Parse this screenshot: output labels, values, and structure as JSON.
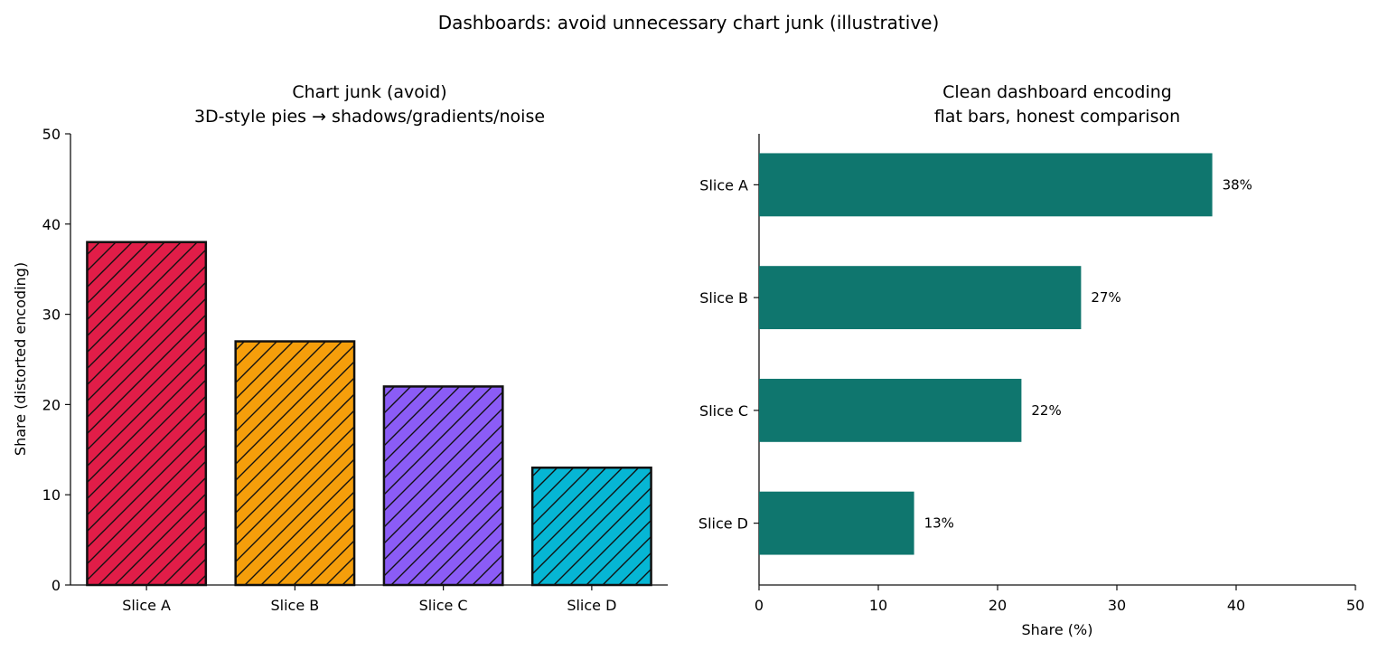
{
  "figure": {
    "suptitle": "Dashboards: avoid unnecessary chart junk (illustrative)"
  },
  "chart_data": [
    {
      "type": "bar",
      "title_line1": "Chart junk (avoid)",
      "title_line2": "3D-style pies → shadows/gradients/noise",
      "xlabel": "",
      "ylabel": "Share (distorted encoding)",
      "categories": [
        "Slice A",
        "Slice B",
        "Slice C",
        "Slice D"
      ],
      "values": [
        38,
        27,
        22,
        13
      ],
      "colors": [
        "#e11d48",
        "#f59e0b",
        "#8b5cf6",
        "#06b6d4"
      ],
      "hatch": "diagonal",
      "ylim": [
        0,
        50
      ],
      "yticks": [
        "0",
        "10",
        "20",
        "30",
        "40",
        "50"
      ],
      "grid": false
    },
    {
      "type": "bar",
      "orientation": "horizontal",
      "title_line1": "Clean dashboard encoding",
      "title_line2": "flat bars, honest comparison",
      "xlabel": "Share (%)",
      "ylabel": "",
      "categories": [
        "Slice A",
        "Slice B",
        "Slice C",
        "Slice D"
      ],
      "values": [
        38,
        27,
        22,
        13
      ],
      "data_labels": [
        "38%",
        "27%",
        "22%",
        "13%"
      ],
      "color": "#0f766e",
      "xlim": [
        0,
        50
      ],
      "xticks": [
        "0",
        "10",
        "20",
        "30",
        "40",
        "50"
      ],
      "grid": false
    }
  ]
}
